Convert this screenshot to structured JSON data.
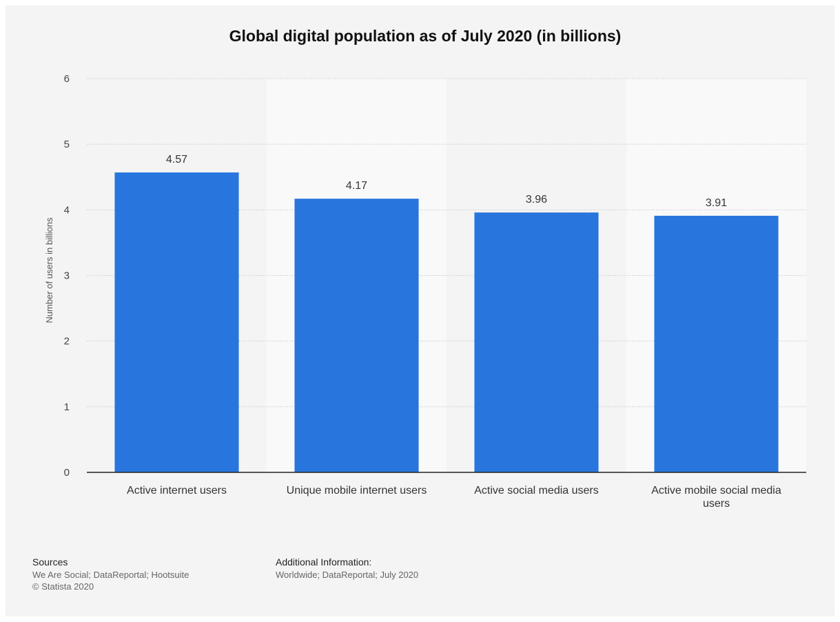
{
  "chart_data": {
    "type": "bar",
    "title": "Global digital population as of July 2020 (in billions)",
    "ylabel": "Number of users in billions",
    "xlabel": "",
    "ylim": [
      0,
      6
    ],
    "yticks": [
      "0",
      "1",
      "2",
      "3",
      "4",
      "5",
      "6"
    ],
    "categories": [
      [
        "Active internet users"
      ],
      [
        "Unique mobile internet users"
      ],
      [
        "Active social media users"
      ],
      [
        "Active mobile social media",
        "users"
      ]
    ],
    "values": [
      4.57,
      4.17,
      3.96,
      3.91
    ],
    "value_labels": [
      "4.57",
      "4.17",
      "3.96",
      "3.91"
    ],
    "grid": true,
    "bar_color": "#2876dd"
  },
  "footer": {
    "sources_title": "Sources",
    "sources_text": "We Are Social; DataReportal; Hootsuite",
    "copyright": "© Statista 2020",
    "info_title": "Additional Information:",
    "info_text": "Worldwide; DataReportal; July 2020"
  }
}
